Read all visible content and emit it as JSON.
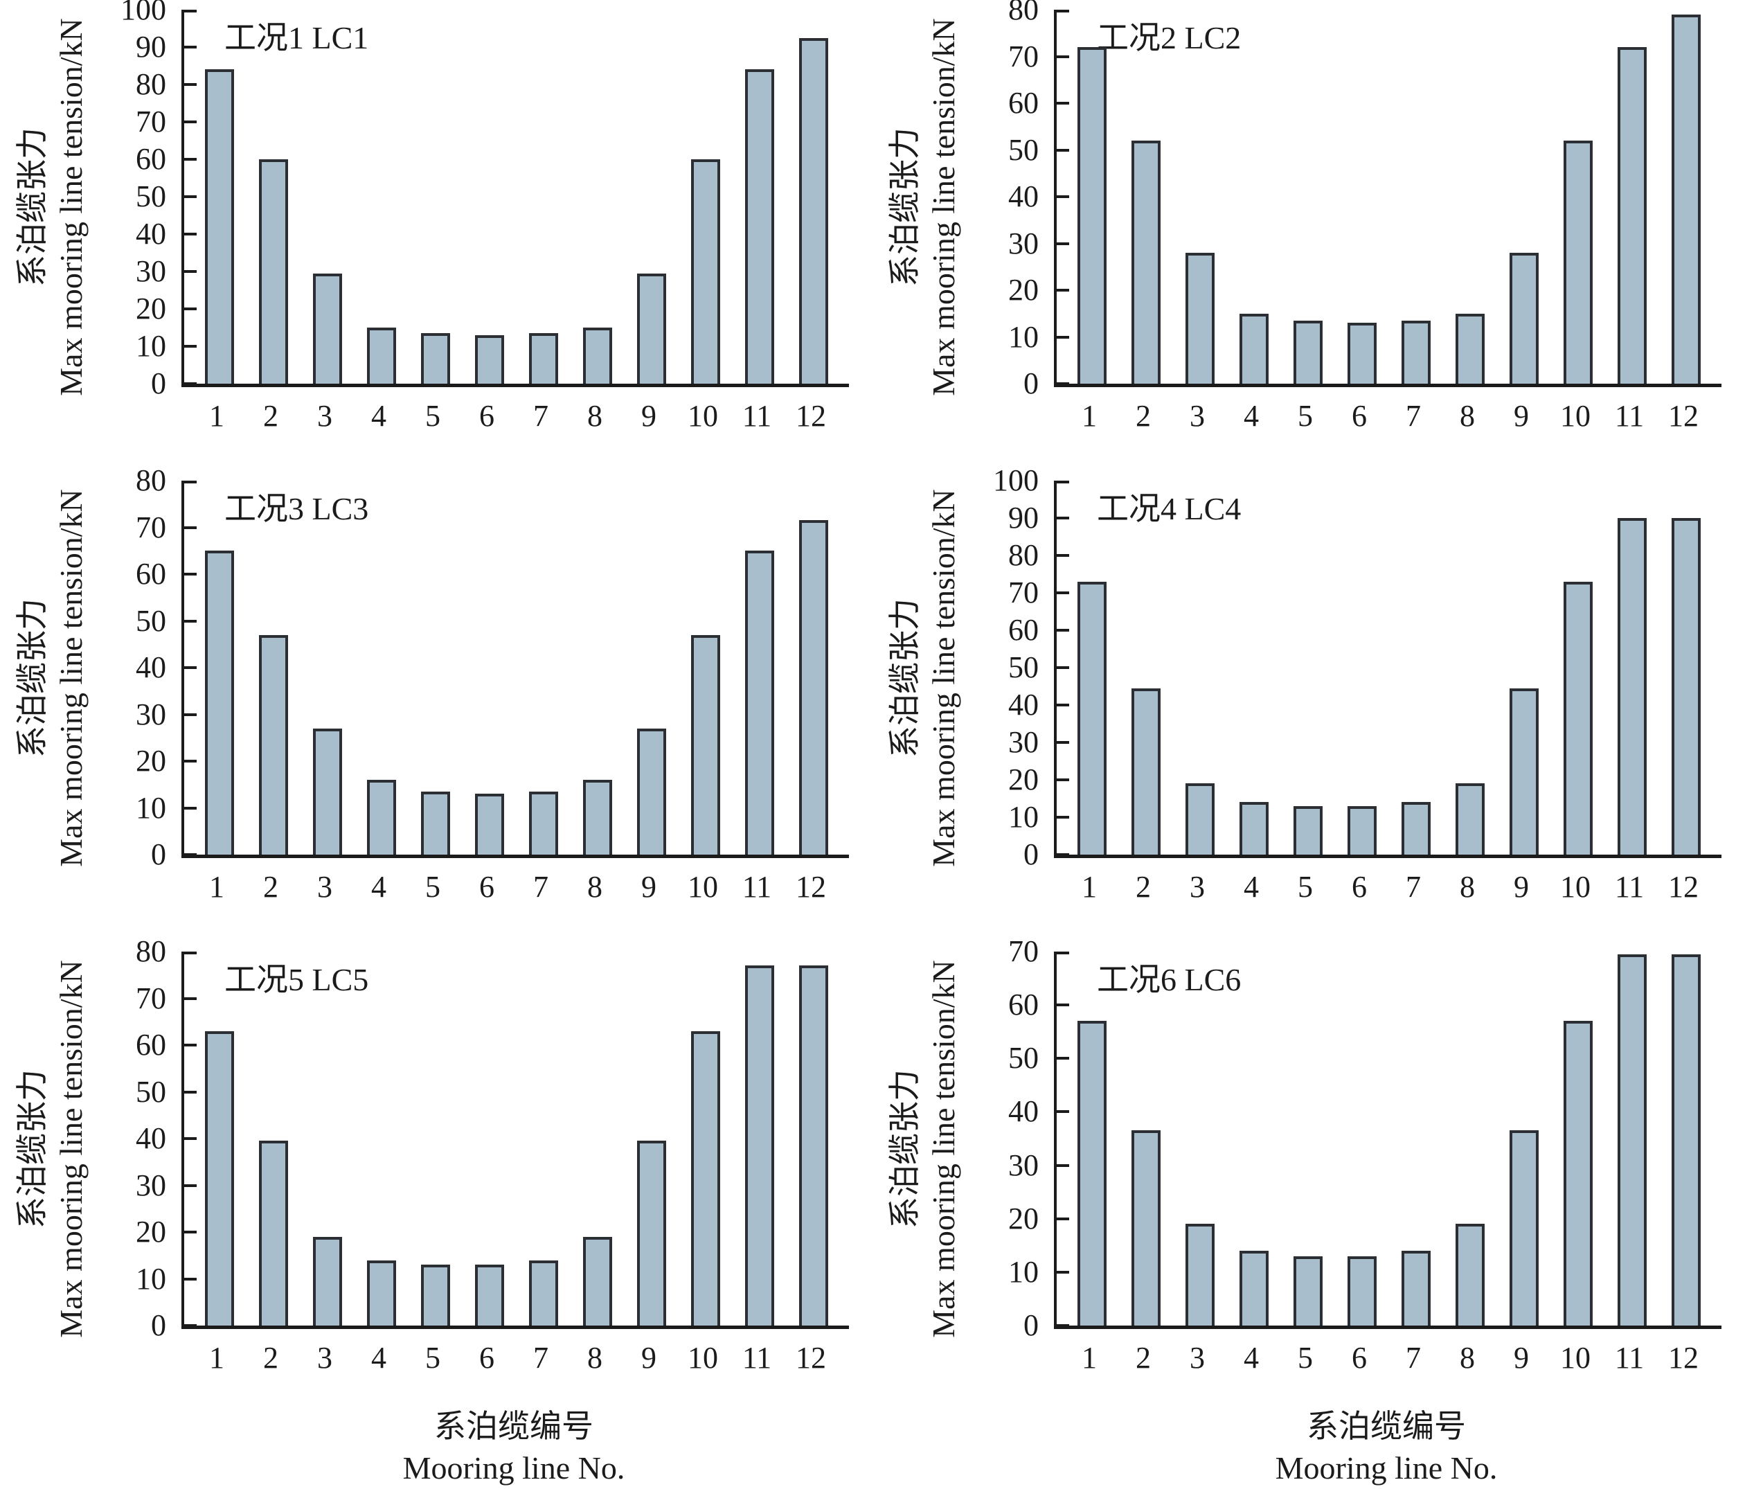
{
  "figure": {
    "ylabel_zh": "系泊缆张力",
    "ylabel_en": "Max mooring line tension/kN",
    "xlabel_zh": "系泊缆编号",
    "xlabel_en": "Mooring line No."
  },
  "colors": {
    "bar_fill": "#a9becc",
    "bar_stroke": "#2b2e33",
    "axis": "#1b1b1b",
    "text": "#1b1b1b"
  },
  "chart_data": [
    {
      "type": "bar",
      "title": "工况1 LC1",
      "categories": [
        "1",
        "2",
        "3",
        "4",
        "5",
        "6",
        "7",
        "8",
        "9",
        "10",
        "11",
        "12"
      ],
      "values": [
        84,
        60,
        29.5,
        15,
        13.5,
        13,
        13.5,
        15,
        29.5,
        60,
        84,
        92.5
      ],
      "xlabel": "系泊缆编号 Mooring line No.",
      "ylabel": "系泊缆张力 Max mooring line tension/kN",
      "ylim": [
        0,
        100
      ],
      "yticks": [
        0,
        10,
        20,
        30,
        40,
        50,
        60,
        70,
        80,
        90,
        100
      ],
      "grid": false,
      "legend": "none"
    },
    {
      "type": "bar",
      "title": "工况2 LC2",
      "categories": [
        "1",
        "2",
        "3",
        "4",
        "5",
        "6",
        "7",
        "8",
        "9",
        "10",
        "11",
        "12"
      ],
      "values": [
        72,
        52,
        28,
        15,
        13.5,
        13,
        13.5,
        15,
        28,
        52,
        72,
        79
      ],
      "xlabel": "系泊缆编号 Mooring line No.",
      "ylabel": "系泊缆张力 Max mooring line tension/kN",
      "ylim": [
        0,
        80
      ],
      "yticks": [
        0,
        10,
        20,
        30,
        40,
        50,
        60,
        70,
        80
      ],
      "grid": false,
      "legend": "none"
    },
    {
      "type": "bar",
      "title": "工况3 LC3",
      "categories": [
        "1",
        "2",
        "3",
        "4",
        "5",
        "6",
        "7",
        "8",
        "9",
        "10",
        "11",
        "12"
      ],
      "values": [
        65,
        47,
        27,
        16,
        13.5,
        13,
        13.5,
        16,
        27,
        47,
        65,
        71.5
      ],
      "xlabel": "系泊缆编号 Mooring line No.",
      "ylabel": "系泊缆张力 Max mooring line tension/kN",
      "ylim": [
        0,
        80
      ],
      "yticks": [
        0,
        10,
        20,
        30,
        40,
        50,
        60,
        70,
        80
      ],
      "grid": false,
      "legend": "none"
    },
    {
      "type": "bar",
      "title": "工况4 LC4",
      "categories": [
        "1",
        "2",
        "3",
        "4",
        "5",
        "6",
        "7",
        "8",
        "9",
        "10",
        "11",
        "12"
      ],
      "values": [
        73,
        44.5,
        19,
        14,
        13,
        13,
        14,
        19,
        44.5,
        73,
        90,
        90
      ],
      "xlabel": "系泊缆编号 Mooring line No.",
      "ylabel": "系泊缆张力 Max mooring line tension/kN",
      "ylim": [
        0,
        100
      ],
      "yticks": [
        0,
        10,
        20,
        30,
        40,
        50,
        60,
        70,
        80,
        90,
        100
      ],
      "grid": false,
      "legend": "none"
    },
    {
      "type": "bar",
      "title": "工况5 LC5",
      "categories": [
        "1",
        "2",
        "3",
        "4",
        "5",
        "6",
        "7",
        "8",
        "9",
        "10",
        "11",
        "12"
      ],
      "values": [
        63,
        39.5,
        19,
        14,
        13,
        13,
        14,
        19,
        39.5,
        63,
        77,
        77
      ],
      "xlabel": "系泊缆编号 Mooring line No.",
      "ylabel": "系泊缆张力 Max mooring line tension/kN",
      "ylim": [
        0,
        80
      ],
      "yticks": [
        0,
        10,
        20,
        30,
        40,
        50,
        60,
        70,
        80
      ],
      "grid": false,
      "legend": "none"
    },
    {
      "type": "bar",
      "title": "工况6 LC6",
      "categories": [
        "1",
        "2",
        "3",
        "4",
        "5",
        "6",
        "7",
        "8",
        "9",
        "10",
        "11",
        "12"
      ],
      "values": [
        57,
        36.5,
        19,
        14,
        13,
        13,
        14,
        19,
        36.5,
        57,
        69.5,
        69.5
      ],
      "xlabel": "系泊缆编号 Mooring line No.",
      "ylabel": "系泊缆张力 Max mooring line tension/kN",
      "ylim": [
        0,
        70
      ],
      "yticks": [
        0,
        10,
        20,
        30,
        40,
        50,
        60,
        70
      ],
      "grid": false,
      "legend": "none"
    }
  ]
}
